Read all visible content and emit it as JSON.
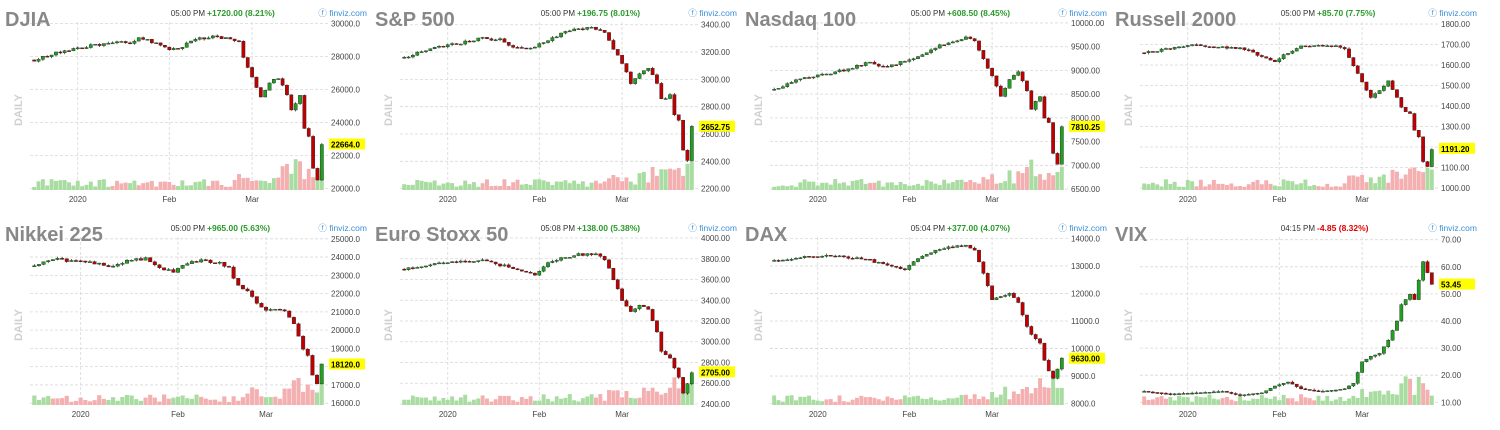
{
  "source_label": "finviz.com",
  "period_label": "DAILY",
  "colors": {
    "up": "#20a020",
    "down": "#c00000",
    "vol_up": "#a8dca0",
    "vol_down": "#f4b0b0",
    "grid": "#d8d8d8",
    "highlight": "#ffff00",
    "change_up": "#2a9a2a",
    "change_down": "#e00000",
    "title": "#888888"
  },
  "panels": [
    {
      "name": "DJIA",
      "time": "05:00 PM",
      "change": "+1720.00 (8.21%)",
      "direction": "up",
      "last": "22664.0",
      "x_ticks": [
        "2020",
        "Feb",
        "Mar"
      ],
      "y_ticks": [
        "30000.0",
        "28000.0",
        "26000.0",
        "24000.0",
        "22000.0",
        "20000.0"
      ],
      "ylim": [
        19900,
        30100
      ],
      "anchors": [
        [
          0,
          27800
        ],
        [
          6,
          28300
        ],
        [
          12,
          28600
        ],
        [
          18,
          28900
        ],
        [
          22,
          28800
        ],
        [
          24,
          29200
        ],
        [
          27,
          28900
        ],
        [
          30,
          28500
        ],
        [
          33,
          28400
        ],
        [
          36,
          29000
        ],
        [
          40,
          29200
        ],
        [
          44,
          29100
        ],
        [
          47,
          28900
        ],
        [
          48,
          27900
        ],
        [
          50,
          26800
        ],
        [
          52,
          25600
        ],
        [
          54,
          26400
        ],
        [
          56,
          26700
        ],
        [
          58,
          25700
        ],
        [
          59,
          24700
        ],
        [
          61,
          25600
        ],
        [
          62,
          23600
        ],
        [
          63,
          23200
        ],
        [
          64,
          21200
        ],
        [
          65,
          20500
        ],
        [
          66,
          22700
        ]
      ]
    },
    {
      "name": "S&P 500",
      "time": "05:00 PM",
      "change": "+196.75 (8.01%)",
      "direction": "up",
      "last": "2652.75",
      "x_ticks": [
        "2020",
        "Feb",
        "Mar"
      ],
      "y_ticks": [
        "3400.00",
        "3200.00",
        "3000.00",
        "2800.00",
        "2600.00",
        "2400.00",
        "2200.00"
      ],
      "ylim": [
        2190,
        3420
      ],
      "anchors": [
        [
          0,
          3160
        ],
        [
          6,
          3225
        ],
        [
          12,
          3260
        ],
        [
          18,
          3300
        ],
        [
          22,
          3290
        ],
        [
          24,
          3250
        ],
        [
          27,
          3230
        ],
        [
          30,
          3240
        ],
        [
          33,
          3280
        ],
        [
          36,
          3340
        ],
        [
          40,
          3370
        ],
        [
          44,
          3375
        ],
        [
          46,
          3340
        ],
        [
          48,
          3220
        ],
        [
          50,
          3120
        ],
        [
          52,
          2970
        ],
        [
          54,
          3050
        ],
        [
          56,
          3090
        ],
        [
          58,
          2970
        ],
        [
          59,
          2850
        ],
        [
          61,
          2880
        ],
        [
          62,
          2740
        ],
        [
          63,
          2700
        ],
        [
          64,
          2480
        ],
        [
          65,
          2410
        ],
        [
          66,
          2650
        ]
      ]
    },
    {
      "name": "Nasdaq 100",
      "time": "05:00 PM",
      "change": "+608.50 (8.45%)",
      "direction": "up",
      "last": "7810.25",
      "x_ticks": [
        "2020",
        "Feb",
        "Mar"
      ],
      "y_ticks": [
        "10000.00",
        "9500.00",
        "9000.00",
        "8500.00",
        "8000.00",
        "7500.00",
        "7000.00",
        "6500.00"
      ],
      "ylim": [
        6480,
        10020
      ],
      "anchors": [
        [
          0,
          8600
        ],
        [
          6,
          8830
        ],
        [
          12,
          8920
        ],
        [
          18,
          9050
        ],
        [
          22,
          9180
        ],
        [
          24,
          9080
        ],
        [
          27,
          9100
        ],
        [
          30,
          9200
        ],
        [
          33,
          9270
        ],
        [
          36,
          9450
        ],
        [
          40,
          9600
        ],
        [
          44,
          9700
        ],
        [
          46,
          9620
        ],
        [
          48,
          9230
        ],
        [
          50,
          8870
        ],
        [
          52,
          8460
        ],
        [
          54,
          8800
        ],
        [
          56,
          8950
        ],
        [
          58,
          8570
        ],
        [
          59,
          8200
        ],
        [
          61,
          8450
        ],
        [
          62,
          8000
        ],
        [
          63,
          7900
        ],
        [
          64,
          7250
        ],
        [
          65,
          7020
        ],
        [
          66,
          7810
        ]
      ]
    },
    {
      "name": "Russell 2000",
      "time": "05:00 PM",
      "change": "+85.70 (7.75%)",
      "direction": "up",
      "last": "1191.20",
      "x_ticks": [
        "2020",
        "Feb",
        "Mar"
      ],
      "y_ticks": [
        "1800.00",
        "1700.00",
        "1600.00",
        "1500.00",
        "1400.00",
        "1300.00",
        "1200.00",
        "1100.00",
        "1000.00"
      ],
      "ylim": [
        990,
        1810
      ],
      "anchors": [
        [
          0,
          1660
        ],
        [
          6,
          1680
        ],
        [
          12,
          1700
        ],
        [
          18,
          1685
        ],
        [
          22,
          1680
        ],
        [
          24,
          1670
        ],
        [
          27,
          1640
        ],
        [
          30,
          1620
        ],
        [
          33,
          1660
        ],
        [
          36,
          1690
        ],
        [
          40,
          1700
        ],
        [
          44,
          1690
        ],
        [
          46,
          1680
        ],
        [
          48,
          1600
        ],
        [
          50,
          1520
        ],
        [
          52,
          1440
        ],
        [
          54,
          1480
        ],
        [
          56,
          1520
        ],
        [
          58,
          1440
        ],
        [
          59,
          1390
        ],
        [
          61,
          1360
        ],
        [
          62,
          1280
        ],
        [
          63,
          1250
        ],
        [
          64,
          1130
        ],
        [
          65,
          1105
        ],
        [
          66,
          1191
        ]
      ]
    },
    {
      "name": "Nikkei 225",
      "time": "05:00 PM",
      "change": "+965.00 (5.63%)",
      "direction": "up",
      "last": "18120.0",
      "x_ticks": [
        "2020",
        "Feb",
        "Mar"
      ],
      "y_ticks": [
        "25000.0",
        "24000.0",
        "23000.0",
        "22000.0",
        "21000.0",
        "20000.0",
        "19000.0",
        "18000.0",
        "17000.0",
        "16000.0"
      ],
      "ylim": [
        15900,
        25100
      ],
      "anchors": [
        [
          0,
          23500
        ],
        [
          4,
          23900
        ],
        [
          8,
          23800
        ],
        [
          12,
          23700
        ],
        [
          16,
          23500
        ],
        [
          20,
          23800
        ],
        [
          24,
          23900
        ],
        [
          27,
          23400
        ],
        [
          30,
          23200
        ],
        [
          33,
          23700
        ],
        [
          36,
          23800
        ],
        [
          40,
          23700
        ],
        [
          42,
          23400
        ],
        [
          44,
          22400
        ],
        [
          46,
          22100
        ],
        [
          48,
          21500
        ],
        [
          50,
          21100
        ],
        [
          52,
          21200
        ],
        [
          54,
          21000
        ],
        [
          56,
          20300
        ],
        [
          57,
          19700
        ],
        [
          58,
          19000
        ],
        [
          59,
          18600
        ],
        [
          60,
          17500
        ],
        [
          61,
          17100
        ],
        [
          62,
          18120
        ]
      ]
    },
    {
      "name": "Euro Stoxx 50",
      "time": "05:08 PM",
      "change": "+138.00 (5.38%)",
      "direction": "up",
      "last": "2705.00",
      "x_ticks": [
        "2020",
        "Feb",
        "Mar"
      ],
      "y_ticks": [
        "4000.00",
        "3800.00",
        "3600.00",
        "3400.00",
        "3200.00",
        "3000.00",
        "2800.00",
        "2600.00",
        "2400.00"
      ],
      "ylim": [
        2390,
        4010
      ],
      "anchors": [
        [
          0,
          3700
        ],
        [
          6,
          3750
        ],
        [
          12,
          3770
        ],
        [
          18,
          3780
        ],
        [
          22,
          3740
        ],
        [
          24,
          3720
        ],
        [
          27,
          3680
        ],
        [
          30,
          3650
        ],
        [
          33,
          3760
        ],
        [
          36,
          3800
        ],
        [
          40,
          3840
        ],
        [
          44,
          3850
        ],
        [
          46,
          3800
        ],
        [
          48,
          3600
        ],
        [
          50,
          3400
        ],
        [
          52,
          3300
        ],
        [
          54,
          3350
        ],
        [
          56,
          3320
        ],
        [
          58,
          3100
        ],
        [
          59,
          2900
        ],
        [
          61,
          2850
        ],
        [
          62,
          2750
        ],
        [
          63,
          2650
        ],
        [
          64,
          2500
        ],
        [
          65,
          2600
        ],
        [
          66,
          2705
        ]
      ]
    },
    {
      "name": "DAX",
      "time": "05:04 PM",
      "change": "+377.00 (4.07%)",
      "direction": "up",
      "last": "9630.00",
      "x_ticks": [
        "2020",
        "Feb",
        "Mar"
      ],
      "y_ticks": [
        "14000.0",
        "13000.0",
        "12000.0",
        "11000.0",
        "10000.0",
        "9000.0",
        "8000.0"
      ],
      "ylim": [
        7950,
        14050
      ],
      "anchors": [
        [
          0,
          13200
        ],
        [
          6,
          13300
        ],
        [
          12,
          13400
        ],
        [
          18,
          13300
        ],
        [
          22,
          13200
        ],
        [
          24,
          13100
        ],
        [
          27,
          13000
        ],
        [
          30,
          12900
        ],
        [
          33,
          13300
        ],
        [
          36,
          13500
        ],
        [
          40,
          13700
        ],
        [
          44,
          13750
        ],
        [
          46,
          13600
        ],
        [
          48,
          12700
        ],
        [
          50,
          11800
        ],
        [
          52,
          11900
        ],
        [
          54,
          12000
        ],
        [
          56,
          11700
        ],
        [
          58,
          10800
        ],
        [
          59,
          10500
        ],
        [
          61,
          10200
        ],
        [
          62,
          9600
        ],
        [
          63,
          9200
        ],
        [
          64,
          8900
        ],
        [
          65,
          9250
        ],
        [
          66,
          9630
        ]
      ]
    },
    {
      "name": "VIX",
      "time": "04:15 PM",
      "change": "-4.85 (8.32%)",
      "direction": "down",
      "last": "53.45",
      "x_ticks": [
        "2020",
        "Feb",
        "Mar"
      ],
      "y_ticks": [
        "70.00",
        "60.00",
        "50.00",
        "40.00",
        "30.00",
        "20.00",
        "10.00"
      ],
      "ylim": [
        9,
        71
      ],
      "anchors": [
        [
          0,
          14
        ],
        [
          6,
          13
        ],
        [
          12,
          13.5
        ],
        [
          18,
          14
        ],
        [
          22,
          12.5
        ],
        [
          24,
          13
        ],
        [
          27,
          13.5
        ],
        [
          30,
          16
        ],
        [
          33,
          17.5
        ],
        [
          36,
          15
        ],
        [
          40,
          14
        ],
        [
          44,
          14.5
        ],
        [
          46,
          15
        ],
        [
          48,
          17
        ],
        [
          50,
          25
        ],
        [
          52,
          27
        ],
        [
          54,
          28
        ],
        [
          56,
          33
        ],
        [
          58,
          40
        ],
        [
          59,
          46
        ],
        [
          61,
          50
        ],
        [
          62,
          48
        ],
        [
          63,
          55
        ],
        [
          64,
          62
        ],
        [
          65,
          58
        ],
        [
          66,
          53.45
        ]
      ]
    }
  ]
}
